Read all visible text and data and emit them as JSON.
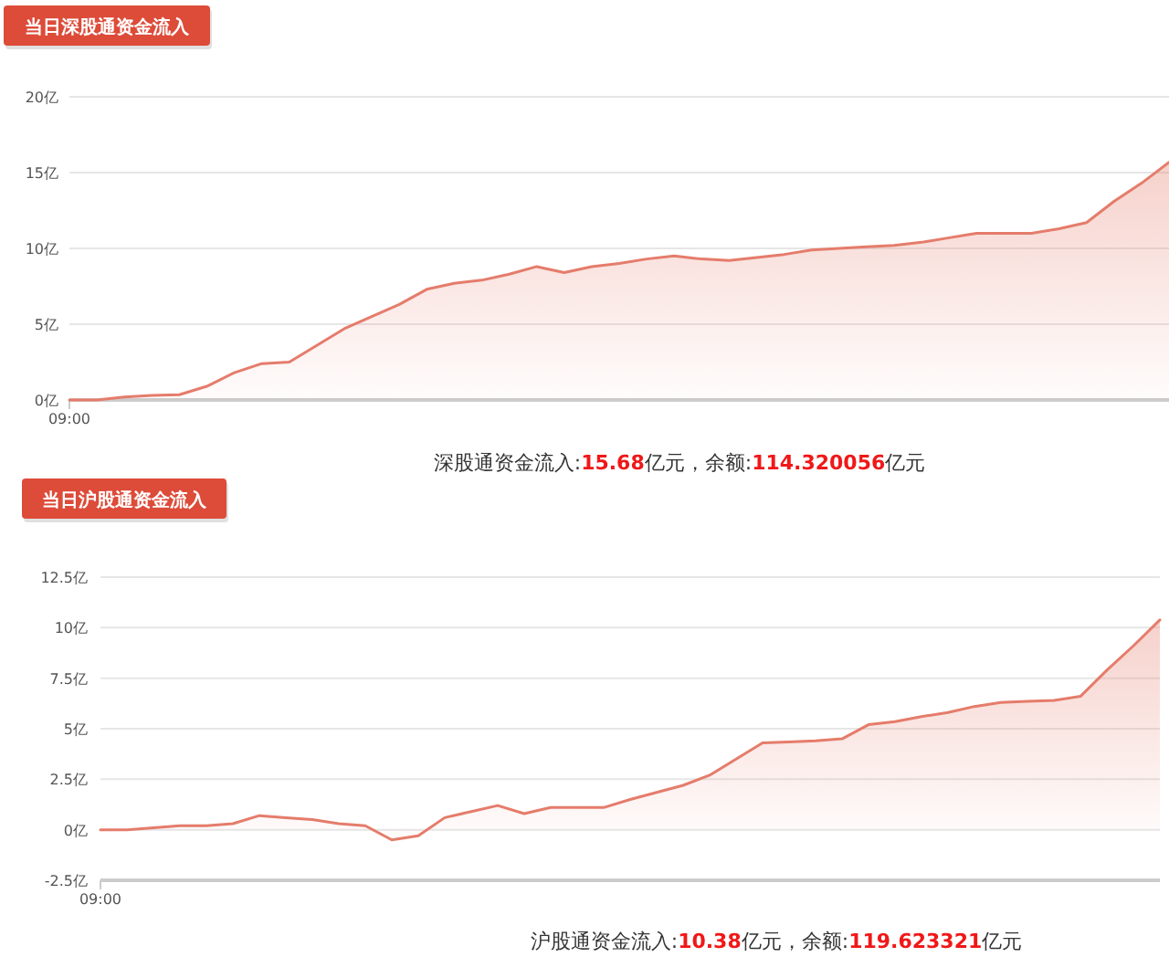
{
  "chart_data": [
    {
      "type": "area",
      "title": "当日深股通资金流入",
      "annotations": [
        "深股通资金流入:15.68亿元，余额:114.320056亿元"
      ],
      "categories": [
        "09:00",
        null,
        null,
        null,
        null,
        null,
        null,
        null,
        null,
        null,
        null,
        null,
        null,
        null,
        null,
        null,
        null,
        null,
        null,
        null,
        null,
        null,
        null,
        null,
        null,
        null,
        null,
        null,
        null,
        null,
        null,
        null,
        null,
        null,
        null,
        null,
        null,
        null,
        null,
        null,
        null
      ],
      "series": [
        {
          "color": "#e57c6b",
          "values": [
            0,
            0,
            0.2,
            0.3,
            0.35,
            0.9,
            1.8,
            2.4,
            2.5,
            3.6,
            4.7,
            5.5,
            6.3,
            7.3,
            7.7,
            7.9,
            8.3,
            8.8,
            8.4,
            8.8,
            9.0,
            9.3,
            9.5,
            9.3,
            9.2,
            9.4,
            9.6,
            9.9,
            10.0,
            10.1,
            10.2,
            10.4,
            10.7,
            11.0,
            11.0,
            11.0,
            11.3,
            11.7,
            13.1,
            14.3,
            15.68
          ]
        }
      ],
      "ylim": [
        0,
        20
      ],
      "yticks": [
        {
          "value": 0,
          "label": "0亿"
        },
        {
          "value": 5,
          "label": "5亿"
        },
        {
          "value": 10,
          "label": "10亿"
        },
        {
          "value": 15,
          "label": "15亿"
        },
        {
          "value": 20,
          "label": "20亿"
        }
      ],
      "grid": "y"
    },
    {
      "type": "area",
      "title": "当日沪股通资金流入",
      "annotations": [
        "沪股通资金流入:10.38亿元，余额:119.623321亿元"
      ],
      "categories": [
        "09:00",
        null,
        null,
        null,
        null,
        null,
        null,
        null,
        null,
        null,
        null,
        null,
        null,
        null,
        null,
        null,
        null,
        null,
        null,
        null,
        null,
        null,
        null,
        null,
        null,
        null,
        null,
        null,
        null,
        null,
        null,
        null,
        null,
        null,
        null,
        null,
        null,
        null,
        null,
        null,
        null
      ],
      "series": [
        {
          "color": "#e57c6b",
          "values": [
            0,
            0,
            0.1,
            0.2,
            0.2,
            0.3,
            0.7,
            0.6,
            0.5,
            0.3,
            0.2,
            -0.5,
            -0.3,
            0.6,
            0.9,
            1.2,
            0.8,
            1.1,
            1.1,
            1.1,
            1.5,
            1.85,
            2.2,
            2.7,
            3.5,
            4.3,
            4.35,
            4.4,
            4.5,
            5.2,
            5.35,
            5.6,
            5.8,
            6.1,
            6.3,
            6.35,
            6.4,
            6.6,
            7.9,
            9.1,
            10.38
          ]
        }
      ],
      "ylim": [
        -2.5,
        12.5
      ],
      "yticks": [
        {
          "value": -2.5,
          "label": "-2.5亿"
        },
        {
          "value": 0,
          "label": "0亿"
        },
        {
          "value": 2.5,
          "label": "2.5亿"
        },
        {
          "value": 5,
          "label": "5亿"
        },
        {
          "value": 7.5,
          "label": "7.5亿"
        },
        {
          "value": 10,
          "label": "10亿"
        },
        {
          "value": 12.5,
          "label": "12.5亿"
        }
      ],
      "grid": "y"
    }
  ]
}
